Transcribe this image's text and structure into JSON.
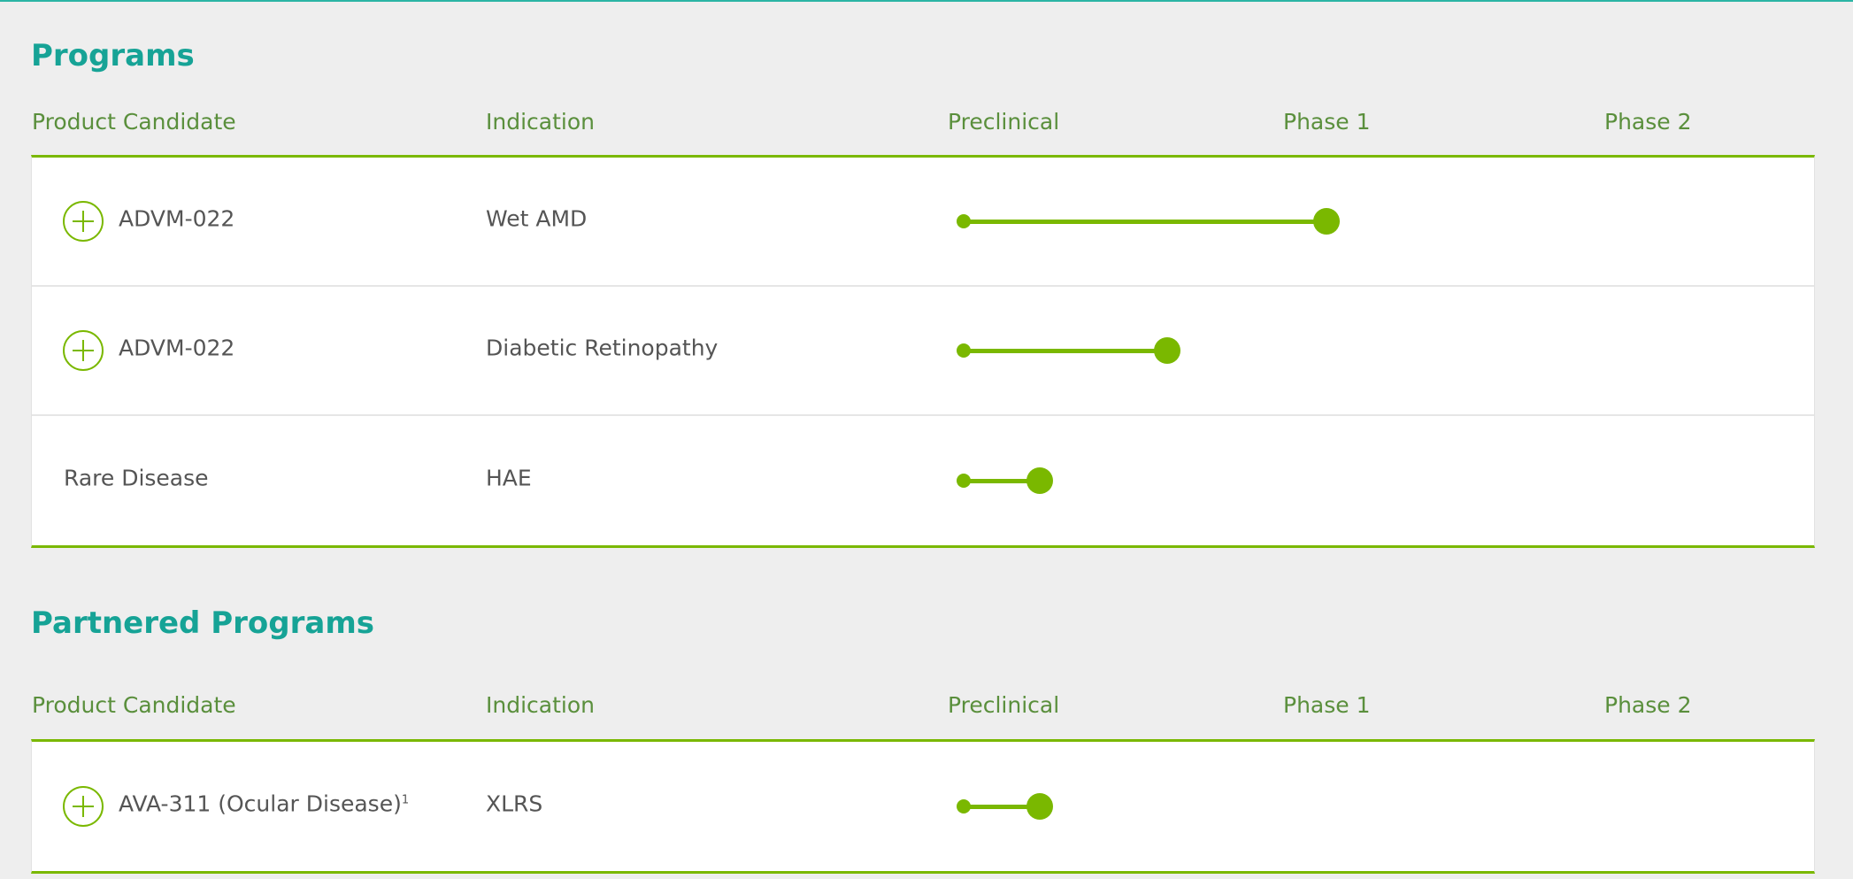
{
  "colors": {
    "accent": "#7ab800",
    "title": "#16a396",
    "header": "#5a8f3c",
    "text": "#555555"
  },
  "columns": [
    "Product Candidate",
    "Indication",
    "Preclinical",
    "Phase 1",
    "Phase 2"
  ],
  "sections": [
    {
      "title": "Programs",
      "rows": [
        {
          "candidate": "ADVM-022",
          "footnote": "",
          "indication": "Wet AMD",
          "expandable": true,
          "progress_phases": 1.0
        },
        {
          "candidate": "ADVM-022",
          "footnote": "",
          "indication": "Diabetic Retinopathy",
          "expandable": true,
          "progress_phases": 0.56
        },
        {
          "candidate": "Rare Disease",
          "footnote": "",
          "indication": "HAE",
          "expandable": false,
          "progress_phases": 0.21
        }
      ]
    },
    {
      "title": "Partnered Programs",
      "rows": [
        {
          "candidate": "AVA-311 (Ocular Disease)",
          "footnote": "1",
          "indication": "XLRS",
          "expandable": true,
          "progress_phases": 0.21
        }
      ]
    }
  ]
}
